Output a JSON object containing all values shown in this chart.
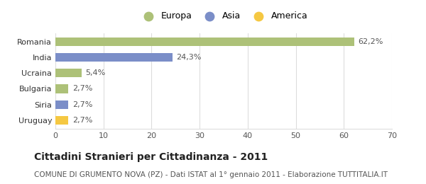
{
  "categories": [
    "Romania",
    "India",
    "Ucraina",
    "Bulgaria",
    "Siria",
    "Uruguay"
  ],
  "values": [
    62.2,
    24.3,
    5.4,
    2.7,
    2.7,
    2.7
  ],
  "labels": [
    "62,2%",
    "24,3%",
    "5,4%",
    "2,7%",
    "2,7%",
    "2,7%"
  ],
  "colors": [
    "#adc178",
    "#7b8ec8",
    "#adc178",
    "#adc178",
    "#7b8ec8",
    "#f5c842"
  ],
  "legend_items": [
    {
      "label": "Europa",
      "color": "#adc178"
    },
    {
      "label": "Asia",
      "color": "#7b8ec8"
    },
    {
      "label": "America",
      "color": "#f5c842"
    }
  ],
  "xlim": [
    0,
    70
  ],
  "xticks": [
    0,
    10,
    20,
    30,
    40,
    50,
    60,
    70
  ],
  "title_bold": "Cittadini Stranieri per Cittadinanza - 2011",
  "subtitle": "COMUNE DI GRUMENTO NOVA (PZ) - Dati ISTAT al 1° gennaio 2011 - Elaborazione TUTTITALIA.IT",
  "background_color": "#ffffff",
  "grid_color": "#dddddd",
  "bar_height": 0.55,
  "label_fontsize": 8.0,
  "tick_fontsize": 8.0,
  "legend_fontsize": 9,
  "title_fontsize": 10,
  "subtitle_fontsize": 7.5
}
